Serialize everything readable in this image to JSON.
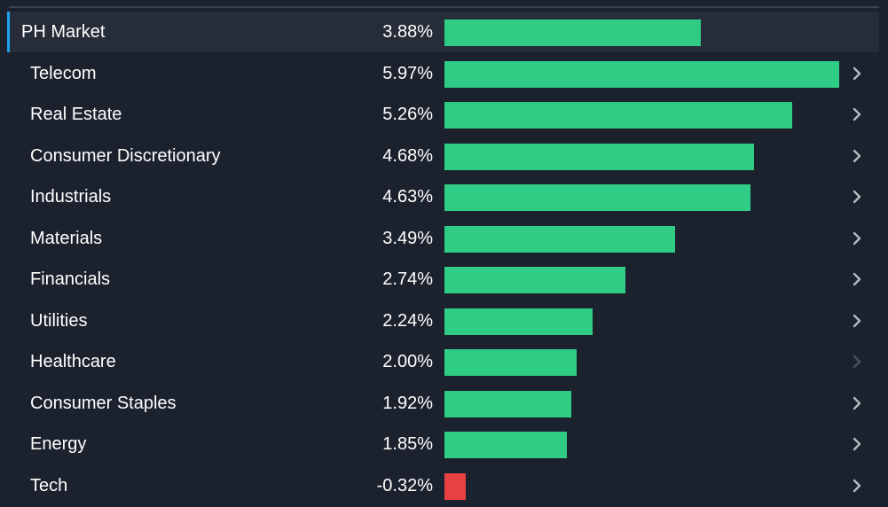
{
  "colors": {
    "positive": "#2ecc84",
    "negative": "#e84142",
    "chevron": "#b5bac1",
    "chevron_dim": "#4a505a"
  },
  "chart_data": {
    "type": "bar",
    "orientation": "horizontal",
    "unit": "%",
    "xlim": [
      0,
      5.97
    ],
    "market": {
      "label": "PH Market",
      "value": 3.88,
      "display": "3.88%"
    },
    "categories": [
      "Telecom",
      "Real Estate",
      "Consumer Discretionary",
      "Industrials",
      "Materials",
      "Financials",
      "Utilities",
      "Healthcare",
      "Consumer Staples",
      "Energy",
      "Tech"
    ],
    "values": [
      5.97,
      5.26,
      4.68,
      4.63,
      3.49,
      2.74,
      2.24,
      2.0,
      1.92,
      1.85,
      -0.32
    ],
    "value_labels": [
      "5.97%",
      "5.26%",
      "4.68%",
      "4.63%",
      "3.49%",
      "2.74%",
      "2.24%",
      "2.00%",
      "1.92%",
      "1.85%",
      "-0.32%"
    ],
    "chevron_icons": [
      "chevron-right-icon",
      "chevron-right-icon",
      "chevron-right-icon",
      "chevron-right-icon",
      "chevron-right-icon",
      "chevron-right-icon",
      "chevron-right-icon",
      "chevron-right-icon-dim",
      "chevron-right-icon",
      "chevron-right-icon",
      "chevron-right-icon"
    ]
  }
}
